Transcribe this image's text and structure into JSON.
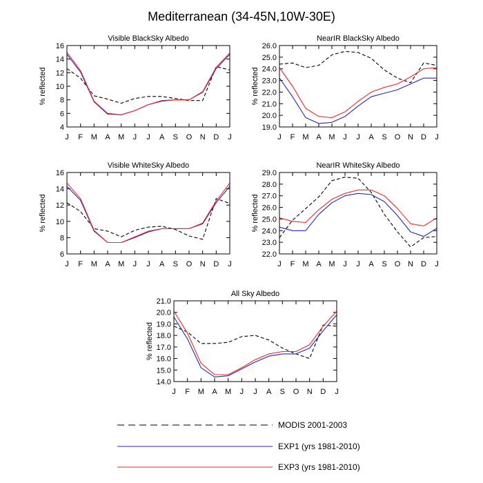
{
  "figure_title": "Mediterranean (34-45N,10W-30E)",
  "legend": {
    "modis": "MODIS 2001-2003",
    "exp1": "EXP1 (yrs 1981-2010)",
    "exp3": "EXP3 (yrs 1981-2010)"
  },
  "colors": {
    "modis": "#000000",
    "exp1": "#2323c8",
    "exp3": "#ff2020"
  },
  "chart_data": [
    {
      "type": "line",
      "title": "Visible BlackSky Albedo",
      "ylabel": "% reflected",
      "categories": [
        "J",
        "F",
        "M",
        "A",
        "M",
        "J",
        "J",
        "A",
        "S",
        "O",
        "N",
        "D",
        "J"
      ],
      "ylim": [
        4,
        16
      ],
      "yticks": [
        "4",
        "6",
        "8",
        "10",
        "12",
        "14",
        "16"
      ],
      "series": [
        {
          "name": "MODIS 2001-2003",
          "values": [
            12.6,
            11.2,
            8.6,
            8.1,
            7.5,
            8.2,
            8.5,
            8.5,
            8.2,
            7.9,
            7.9,
            12.9,
            12.4
          ]
        },
        {
          "name": "EXP1 (yrs 1981-2010)",
          "values": [
            14.7,
            12.1,
            7.7,
            5.9,
            5.8,
            6.4,
            7.3,
            7.8,
            8.0,
            8.0,
            9.1,
            12.6,
            14.7
          ]
        },
        {
          "name": "EXP3 (yrs 1981-2010)",
          "values": [
            15.0,
            12.3,
            7.8,
            6.0,
            5.8,
            6.4,
            7.3,
            7.9,
            8.0,
            8.0,
            9.2,
            12.8,
            14.9
          ]
        }
      ]
    },
    {
      "type": "line",
      "title": "NearIR BlackSky Albedo",
      "ylabel": "% reflected",
      "categories": [
        "J",
        "F",
        "M",
        "A",
        "M",
        "J",
        "J",
        "A",
        "S",
        "O",
        "N",
        "D",
        "J"
      ],
      "ylim": [
        19,
        26
      ],
      "yticks": [
        "19.0",
        "20.0",
        "21.0",
        "22.0",
        "23.0",
        "24.0",
        "25.0",
        "26.0"
      ],
      "series": [
        {
          "name": "MODIS 2001-2003",
          "values": [
            24.4,
            24.5,
            24.1,
            24.3,
            25.2,
            25.5,
            25.4,
            24.9,
            23.9,
            23.2,
            22.8,
            24.5,
            24.3
          ]
        },
        {
          "name": "EXP1 (yrs 1981-2010)",
          "values": [
            23.2,
            21.6,
            19.8,
            19.3,
            19.4,
            19.9,
            20.8,
            21.6,
            21.9,
            22.2,
            22.7,
            23.2,
            23.2
          ]
        },
        {
          "name": "EXP3 (yrs 1981-2010)",
          "values": [
            24.1,
            22.5,
            20.6,
            19.9,
            19.8,
            20.3,
            21.2,
            22.0,
            22.4,
            22.7,
            23.3,
            24.0,
            24.1
          ]
        }
      ]
    },
    {
      "type": "line",
      "title": "Visible WhiteSky Albedo",
      "ylabel": "% reflected",
      "categories": [
        "J",
        "F",
        "M",
        "A",
        "M",
        "J",
        "J",
        "A",
        "S",
        "O",
        "N",
        "D",
        "J"
      ],
      "ylim": [
        6,
        16
      ],
      "yticks": [
        "6",
        "8",
        "10",
        "12",
        "14",
        "16"
      ],
      "series": [
        {
          "name": "MODIS 2001-2003",
          "values": [
            12.3,
            11.2,
            9.1,
            8.8,
            8.1,
            8.9,
            9.3,
            9.4,
            9.0,
            8.2,
            7.8,
            12.8,
            12.2
          ]
        },
        {
          "name": "EXP1 (yrs 1981-2010)",
          "values": [
            14.3,
            12.6,
            8.8,
            7.4,
            7.4,
            8.0,
            8.7,
            9.1,
            9.1,
            9.1,
            9.7,
            12.3,
            14.3
          ]
        },
        {
          "name": "EXP3 (yrs 1981-2010)",
          "values": [
            14.7,
            12.8,
            8.9,
            7.4,
            7.4,
            8.1,
            8.8,
            9.1,
            9.1,
            9.1,
            9.8,
            12.5,
            14.7
          ]
        }
      ]
    },
    {
      "type": "line",
      "title": "NearIR WhiteSky Albedo",
      "ylabel": "% reflected",
      "categories": [
        "J",
        "F",
        "M",
        "A",
        "M",
        "J",
        "J",
        "A",
        "S",
        "O",
        "N",
        "D",
        "J"
      ],
      "ylim": [
        22,
        29
      ],
      "yticks": [
        "22.0",
        "23.0",
        "24.0",
        "25.0",
        "26.0",
        "27.0",
        "28.0",
        "29.0"
      ],
      "series": [
        {
          "name": "MODIS 2001-2003",
          "values": [
            23.4,
            24.9,
            25.9,
            26.9,
            28.3,
            28.6,
            28.5,
            27.3,
            25.4,
            23.9,
            22.6,
            23.4,
            23.5
          ]
        },
        {
          "name": "EXP1 (yrs 1981-2010)",
          "values": [
            24.3,
            24.0,
            24.0,
            25.4,
            26.4,
            27.0,
            27.2,
            27.1,
            26.5,
            25.3,
            23.9,
            23.5,
            24.2
          ]
        },
        {
          "name": "EXP3 (yrs 1981-2010)",
          "values": [
            25.1,
            24.8,
            24.7,
            25.8,
            26.7,
            27.2,
            27.5,
            27.5,
            27.0,
            25.9,
            24.6,
            24.4,
            25.1
          ]
        }
      ]
    },
    {
      "type": "line",
      "title": "All Sky Albedo",
      "ylabel": "% reflected",
      "categories": [
        "J",
        "F",
        "M",
        "A",
        "M",
        "J",
        "J",
        "A",
        "S",
        "O",
        "N",
        "D",
        "J"
      ],
      "ylim": [
        14,
        21
      ],
      "yticks": [
        "14.0",
        "15.0",
        "16.0",
        "17.0",
        "18.0",
        "19.0",
        "20.0",
        "21.0"
      ],
      "series": [
        {
          "name": "MODIS 2001-2003",
          "values": [
            18.8,
            18.3,
            17.3,
            17.3,
            17.4,
            17.9,
            18.0,
            17.6,
            16.9,
            16.4,
            16.0,
            18.9,
            18.8
          ]
        },
        {
          "name": "EXP1 (yrs 1981-2010)",
          "values": [
            19.6,
            17.7,
            15.2,
            14.4,
            14.5,
            15.1,
            15.7,
            16.2,
            16.4,
            16.4,
            16.9,
            18.4,
            19.8
          ]
        },
        {
          "name": "EXP3 (yrs 1981-2010)",
          "values": [
            20.1,
            18.2,
            15.6,
            14.6,
            14.6,
            15.2,
            15.9,
            16.4,
            16.6,
            16.6,
            17.2,
            18.8,
            20.1
          ]
        }
      ]
    }
  ]
}
